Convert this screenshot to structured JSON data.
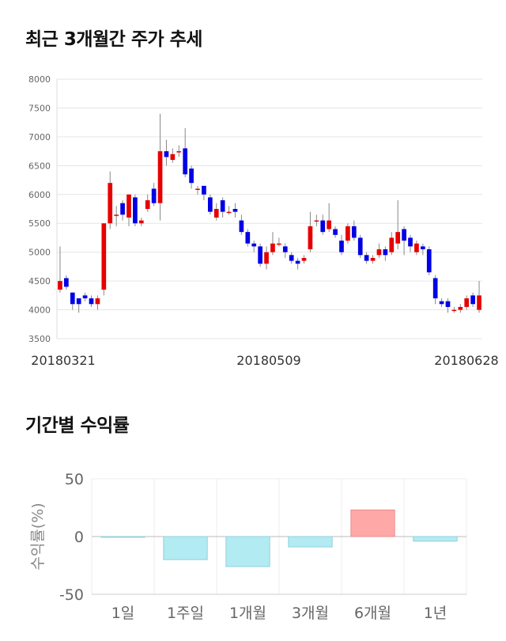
{
  "titles": {
    "price": "최근 3개월간 주가 추세",
    "returns": "기간별 수익률"
  },
  "chart_data": [
    {
      "type": "candlestick",
      "ylim": [
        3500,
        8000
      ],
      "y_ticks": [
        3500,
        4000,
        4500,
        5000,
        5500,
        6000,
        6500,
        7000,
        7500,
        8000
      ],
      "x_ticks": [
        "20180321",
        "20180509",
        "20180628"
      ],
      "grid": true,
      "colors": {
        "up": "#e60000",
        "down": "#0000e6",
        "wick": "#888888"
      },
      "candles": [
        [
          4350,
          4500,
          5100,
          4300
        ],
        [
          4550,
          4400,
          4600,
          4350
        ],
        [
          4300,
          4100,
          4300,
          4000
        ],
        [
          4200,
          4100,
          4200,
          3950
        ],
        [
          4250,
          4200,
          4300,
          4150
        ],
        [
          4200,
          4100,
          4250,
          4050
        ],
        [
          4100,
          4200,
          4250,
          4000
        ],
        [
          4350,
          5500,
          5500,
          4250
        ],
        [
          5500,
          6200,
          6400,
          5400
        ],
        [
          5650,
          5650,
          5800,
          5450
        ],
        [
          5850,
          5650,
          5900,
          5550
        ],
        [
          5600,
          6000,
          6000,
          5450
        ],
        [
          5950,
          5500,
          6000,
          5450
        ],
        [
          5500,
          5550,
          5600,
          5450
        ],
        [
          5750,
          5900,
          6000,
          5700
        ],
        [
          6100,
          5850,
          6200,
          5800
        ],
        [
          5850,
          6750,
          7400,
          5550
        ],
        [
          6750,
          6650,
          6950,
          6500
        ],
        [
          6600,
          6700,
          6800,
          6550
        ],
        [
          6750,
          6750,
          6850,
          6650
        ],
        [
          6800,
          6350,
          7150,
          6300
        ],
        [
          6450,
          6200,
          6500,
          6100
        ],
        [
          6100,
          6100,
          6150,
          6000
        ],
        [
          6150,
          6000,
          6150,
          5900
        ],
        [
          5950,
          5700,
          6000,
          5650
        ],
        [
          5600,
          5750,
          5850,
          5550
        ],
        [
          5900,
          5700,
          5950,
          5600
        ],
        [
          5700,
          5700,
          5800,
          5650
        ],
        [
          5750,
          5700,
          5850,
          5600
        ],
        [
          5550,
          5350,
          5650,
          5300
        ],
        [
          5350,
          5150,
          5400,
          5100
        ],
        [
          5150,
          5100,
          5200,
          5000
        ],
        [
          5100,
          4800,
          5150,
          4750
        ],
        [
          4800,
          5000,
          5100,
          4700
        ],
        [
          5000,
          5150,
          5350,
          4950
        ],
        [
          5150,
          5150,
          5250,
          5100
        ],
        [
          5100,
          5000,
          5150,
          4900
        ],
        [
          4950,
          4850,
          5000,
          4800
        ],
        [
          4850,
          4800,
          4900,
          4700
        ],
        [
          4850,
          4900,
          4950,
          4800
        ],
        [
          5050,
          5450,
          5700,
          5000
        ],
        [
          5550,
          5550,
          5650,
          5450
        ],
        [
          5550,
          5350,
          5650,
          5300
        ],
        [
          5400,
          5550,
          5850,
          5350
        ],
        [
          5400,
          5300,
          5450,
          5250
        ],
        [
          5200,
          5000,
          5300,
          4950
        ],
        [
          5200,
          5450,
          5500,
          5150
        ],
        [
          5450,
          5250,
          5550,
          5200
        ],
        [
          5250,
          4950,
          5300,
          4900
        ],
        [
          4950,
          4850,
          5000,
          4800
        ],
        [
          4850,
          4900,
          4950,
          4800
        ],
        [
          4950,
          5050,
          5150,
          4900
        ],
        [
          5050,
          4950,
          5100,
          4850
        ],
        [
          5000,
          5250,
          5350,
          4950
        ],
        [
          5150,
          5350,
          5900,
          5050
        ],
        [
          5400,
          5200,
          5450,
          4950
        ],
        [
          5250,
          5100,
          5300,
          5000
        ],
        [
          5000,
          5150,
          5200,
          4950
        ],
        [
          5100,
          5050,
          5150,
          4950
        ],
        [
          5050,
          4650,
          5100,
          4600
        ],
        [
          4550,
          4200,
          4600,
          4100
        ],
        [
          4150,
          4100,
          4200,
          4050
        ],
        [
          4150,
          4050,
          4200,
          3950
        ],
        [
          4000,
          4000,
          4050,
          3950
        ],
        [
          4000,
          4050,
          4100,
          3950
        ],
        [
          4050,
          4200,
          4250,
          4000
        ],
        [
          4250,
          4100,
          4300,
          4050
        ],
        [
          4000,
          4250,
          4500,
          3950
        ]
      ]
    },
    {
      "type": "bar",
      "categories": [
        "1일",
        "1주일",
        "1개월",
        "3개월",
        "6개월",
        "1년"
      ],
      "values": [
        -0.5,
        -20,
        -26,
        -9,
        23,
        -4
      ],
      "ylim": [
        -50,
        50
      ],
      "y_ticks": [
        50,
        0,
        -50
      ],
      "ylabel": "수익률(%)",
      "colors": {
        "positive_fill": "#ffa8a8",
        "positive_stroke": "#e88c8c",
        "negative_fill": "#b2ebf2",
        "negative_stroke": "#93d0dd"
      }
    }
  ]
}
